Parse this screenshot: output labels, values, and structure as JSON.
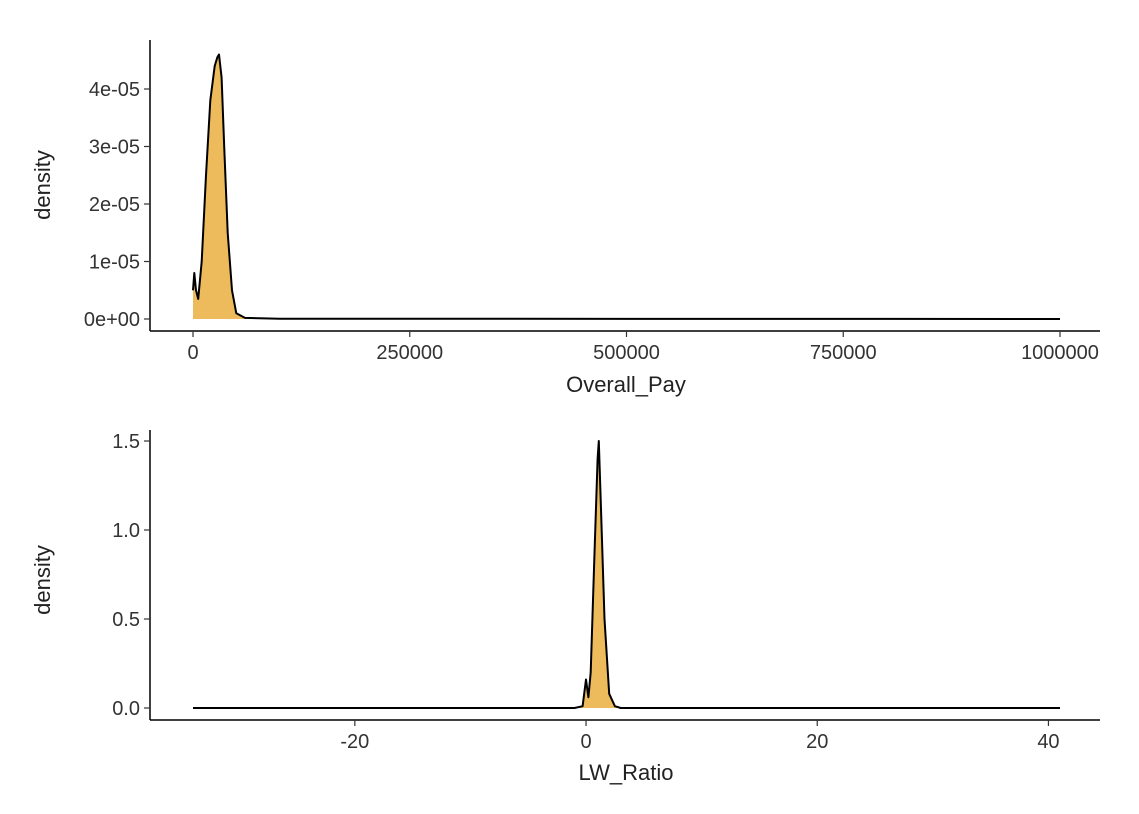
{
  "chart_data": [
    {
      "type": "area",
      "title": "",
      "xlabel": "Overall_Pay",
      "ylabel": "density",
      "xlim": [
        0,
        1000000
      ],
      "ylim": [
        0,
        4.75e-05
      ],
      "x_ticks": [
        0,
        250000,
        500000,
        750000,
        1000000
      ],
      "x_tick_labels": [
        "0",
        "250000",
        "500000",
        "750000",
        "1000000"
      ],
      "y_ticks": [
        0,
        1e-05,
        2e-05,
        3e-05,
        4e-05
      ],
      "y_tick_labels": [
        "0e+00",
        "1e-05",
        "2e-05",
        "3e-05",
        "4e-05"
      ],
      "grid": false,
      "fill_color": "#EDBB5C",
      "line_color": "#000000",
      "x": [
        0,
        1500,
        3500,
        6000,
        10000,
        15000,
        20000,
        25000,
        28000,
        30000,
        33000,
        36000,
        40000,
        45000,
        50000,
        60000,
        100000,
        1000000
      ],
      "y": [
        5e-06,
        8e-06,
        5e-06,
        3.5e-06,
        1e-05,
        2.5e-05,
        3.8e-05,
        4.4e-05,
        4.55e-05,
        4.6e-05,
        4.2e-05,
        3e-05,
        1.5e-05,
        5e-06,
        1e-06,
        2e-07,
        5e-08,
        0
      ]
    },
    {
      "type": "area",
      "title": "",
      "xlabel": "LW_Ratio",
      "ylabel": "density",
      "xlim": [
        -34,
        41
      ],
      "ylim": [
        0,
        1.55
      ],
      "x_ticks": [
        -20,
        0,
        20,
        40
      ],
      "x_tick_labels": [
        "-20",
        "0",
        "20",
        "40"
      ],
      "y_ticks": [
        0,
        0.5,
        1.0,
        1.5
      ],
      "y_tick_labels": [
        "0.0",
        "0.5",
        "1.0",
        "1.5"
      ],
      "grid": false,
      "fill_color": "#EDBB5C",
      "line_color": "#000000",
      "x": [
        -34,
        -1,
        -0.3,
        0,
        0.2,
        0.4,
        0.7,
        1.0,
        1.1,
        1.3,
        1.6,
        2.0,
        2.5,
        3,
        41
      ],
      "y": [
        0,
        0,
        0.01,
        0.16,
        0.06,
        0.2,
        0.8,
        1.4,
        1.5,
        1.1,
        0.5,
        0.08,
        0.01,
        0,
        0
      ]
    }
  ]
}
